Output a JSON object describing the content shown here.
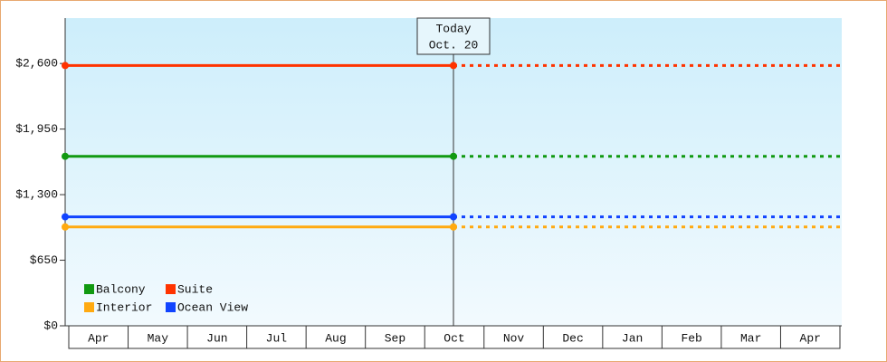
{
  "chart_data": {
    "type": "line",
    "categories": [
      "Apr",
      "May",
      "Jun",
      "Jul",
      "Aug",
      "Sep",
      "Oct",
      "Nov",
      "Dec",
      "Jan",
      "Feb",
      "Mar",
      "Apr"
    ],
    "series": [
      {
        "name": "Balcony",
        "color": "#119911",
        "values": [
          1680,
          1680,
          1680,
          1680,
          1680,
          1680,
          1680,
          1680,
          1680,
          1680,
          1680,
          1680,
          1680
        ]
      },
      {
        "name": "Suite",
        "color": "#ff3300",
        "values": [
          2580,
          2580,
          2580,
          2580,
          2580,
          2580,
          2580,
          2580,
          2580,
          2580,
          2580,
          2580,
          2580
        ]
      },
      {
        "name": "Interior",
        "color": "#ffaa11",
        "values": [
          980,
          980,
          980,
          980,
          980,
          980,
          980,
          980,
          980,
          980,
          980,
          980,
          980
        ]
      },
      {
        "name": "Ocean View",
        "color": "#1144ff",
        "values": [
          1080,
          1080,
          1080,
          1080,
          1080,
          1080,
          1080,
          1080,
          1080,
          1080,
          1080,
          1080,
          1080
        ]
      }
    ],
    "annotation": {
      "x": 6,
      "title": "Today",
      "date": "Oct. 20"
    },
    "ylim": [
      0,
      3050
    ],
    "yticks": [
      {
        "value": 0,
        "label": "$0"
      },
      {
        "value": 650,
        "label": "$650"
      },
      {
        "value": 1300,
        "label": "$1,300"
      },
      {
        "value": 1950,
        "label": "$1,950"
      },
      {
        "value": 2600,
        "label": "$2,600"
      }
    ]
  }
}
